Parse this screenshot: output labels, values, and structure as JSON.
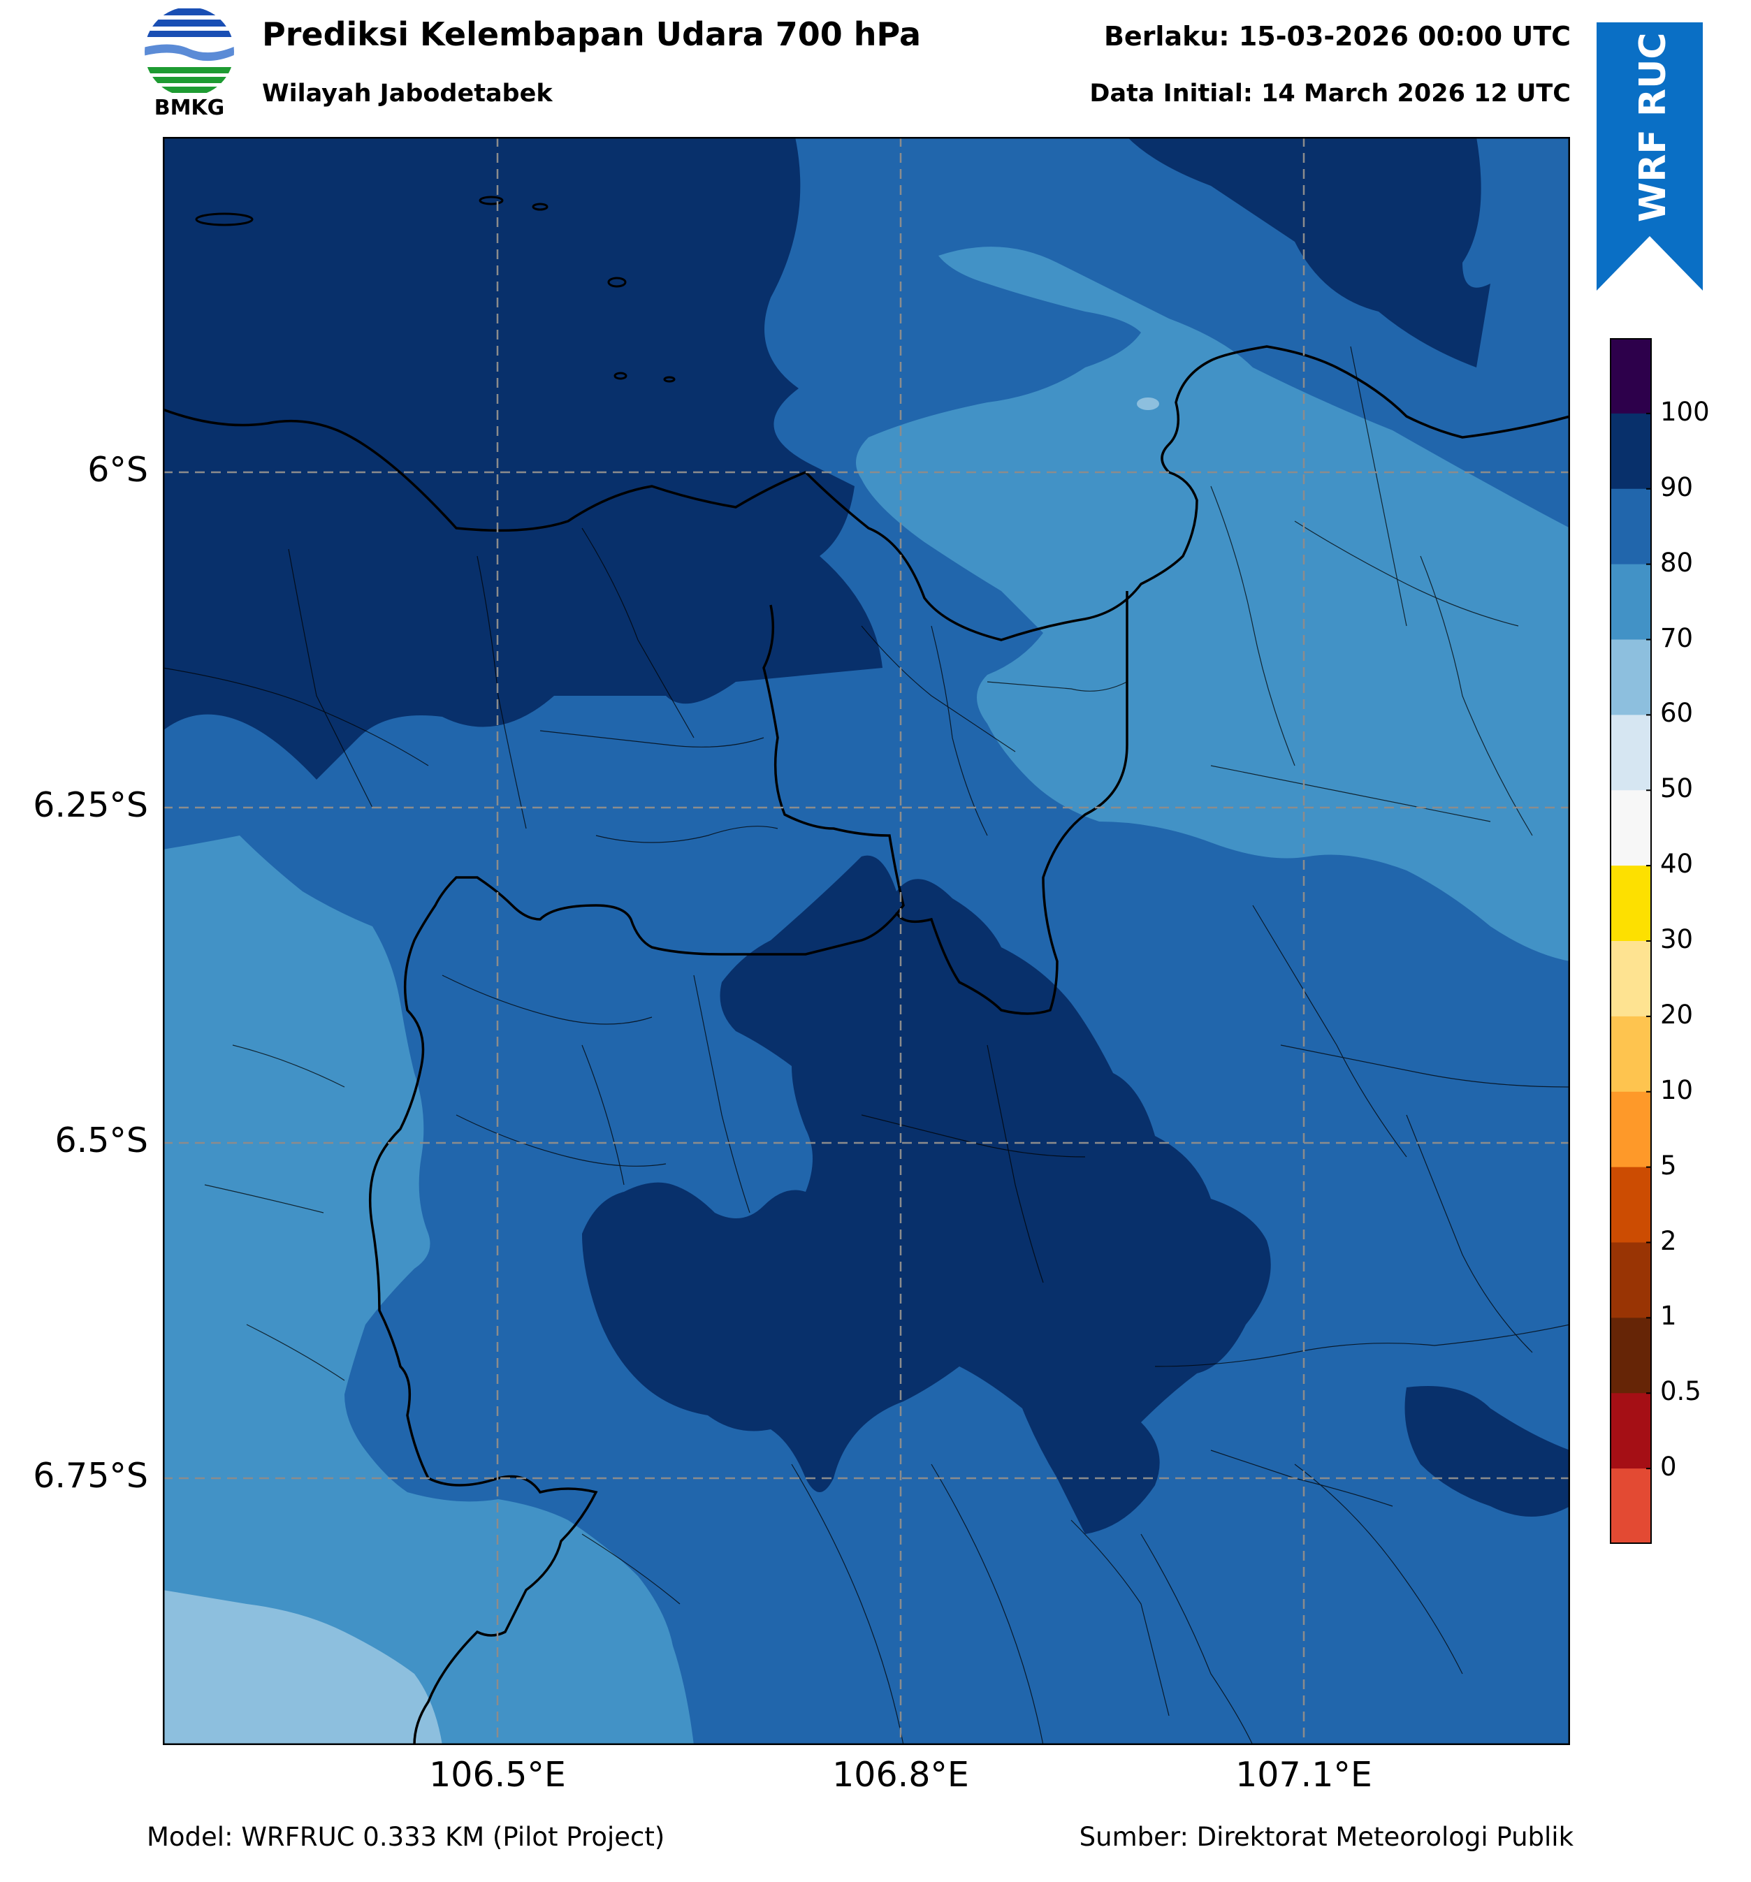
{
  "header": {
    "logo_text": "BMKG",
    "title": "Prediksi Kelembapan Udara 700 hPa",
    "subtitle": "Wilayah Jabodetabek",
    "valid_time": "Berlaku: 15-03-2026 00:00 UTC",
    "initial_time": "Data Initial: 14 March 2026 12 UTC",
    "badge": "WRF RUC"
  },
  "map": {
    "lat_labels": [
      "6°S",
      "6.25°S",
      "6.5°S",
      "6.75°S"
    ],
    "lon_labels": [
      "106.5°E",
      "106.8°E",
      "107.1°E"
    ],
    "grid": "dashed gray",
    "field_colors": {
      "90-100": "#08306b",
      "80-90": "#2166ac",
      "70-80": "#4292c6",
      "60-70": "#8dbfde"
    }
  },
  "colorbar": {
    "labels": [
      "100",
      "90",
      "80",
      "70",
      "60",
      "50",
      "40",
      "30",
      "20",
      "10",
      "5",
      "2",
      "1",
      "0.5",
      "0"
    ],
    "colors": [
      "#2d004b",
      "#08306b",
      "#2166ac",
      "#4292c6",
      "#8dbfde",
      "#d6e6f2",
      "#f7f7f7",
      "#fde000",
      "#fee391",
      "#fec44f",
      "#fe9929",
      "#cc4c02",
      "#993404",
      "#662506",
      "#a50f15",
      "#e34a33"
    ]
  },
  "footer": {
    "model": "Model: WRFRUC 0.333 KM (Pilot Project)",
    "source": "Sumber: Direktorat Meteorologi Publik"
  }
}
